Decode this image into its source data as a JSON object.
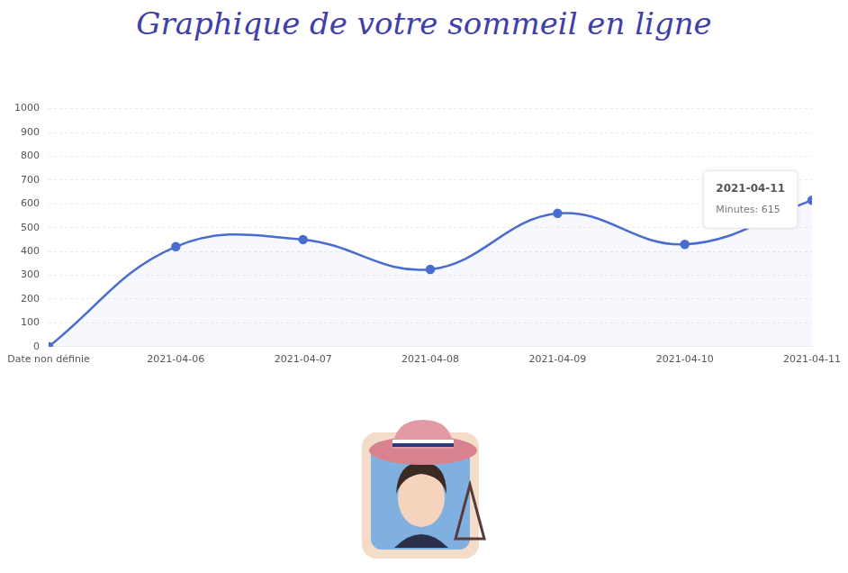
{
  "chart_data": {
    "type": "line",
    "title": "Graphique de votre sommeil en ligne",
    "categories": [
      "Date non définie",
      "2021-04-06",
      "2021-04-07",
      "2021-04-08",
      "2021-04-09",
      "2021-04-10",
      "2021-04-11"
    ],
    "series": [
      {
        "name": "Minutes",
        "color": "#4a6cd0",
        "values": [
          0,
          420,
          450,
          325,
          560,
          430,
          615
        ],
        "marker": "circle"
      }
    ],
    "ylim": [
      0,
      1000
    ],
    "yticks": [
      0,
      100,
      200,
      300,
      400,
      500,
      600,
      700,
      800,
      900,
      1000
    ],
    "grid": true,
    "legend": "none",
    "annotations": [
      {
        "x": "2021-04-11",
        "text": "Minutes: 615"
      }
    ]
  }
}
